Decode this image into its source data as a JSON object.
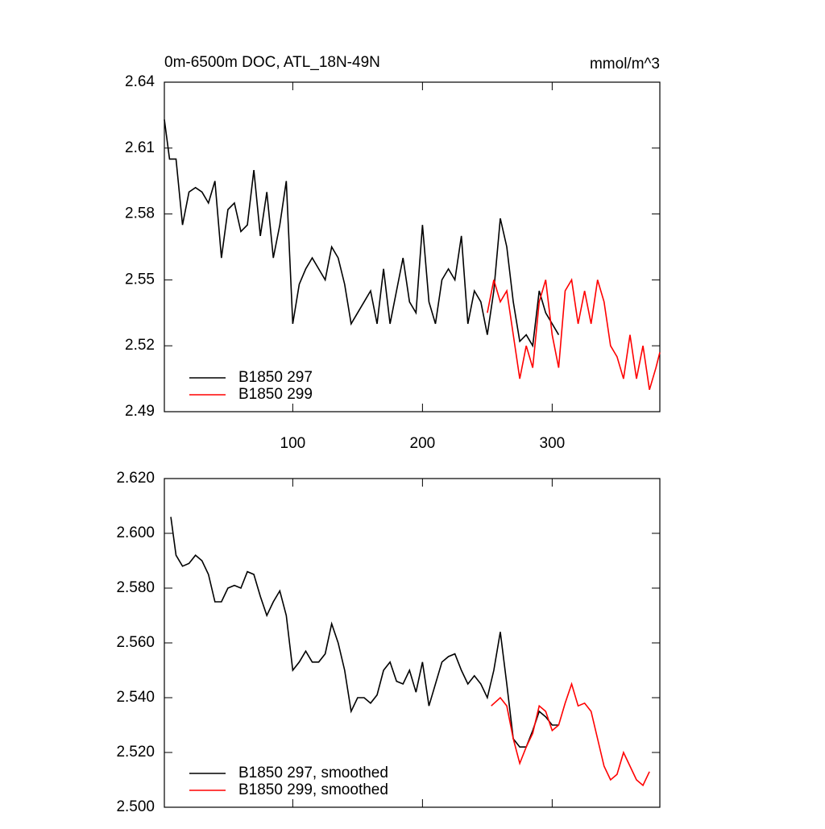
{
  "chart_data": [
    {
      "type": "line",
      "title": "0m-6500m DOC, ATL_18N-49N",
      "units": "mmol/m^3",
      "xlim": [
        1,
        383
      ],
      "xticks": [
        100,
        200,
        300
      ],
      "ylim": [
        2.49,
        2.64
      ],
      "yticks": [
        2.49,
        2.52,
        2.55,
        2.58,
        2.61,
        2.64
      ],
      "legend": "lower left",
      "series": [
        {
          "name": "B1850 297",
          "color": "#000000",
          "x": [
            1,
            5,
            10,
            15,
            20,
            25,
            30,
            35,
            40,
            45,
            50,
            55,
            60,
            65,
            70,
            75,
            80,
            85,
            90,
            95,
            100,
            105,
            110,
            115,
            120,
            125,
            130,
            135,
            140,
            145,
            150,
            155,
            160,
            165,
            170,
            175,
            180,
            185,
            190,
            195,
            200,
            205,
            210,
            215,
            220,
            225,
            230,
            235,
            240,
            245,
            250,
            255,
            260,
            265,
            270,
            275,
            280,
            285,
            290,
            295,
            300,
            305
          ],
          "values": [
            2.623,
            2.605,
            2.605,
            2.575,
            2.59,
            2.592,
            2.59,
            2.585,
            2.595,
            2.56,
            2.582,
            2.585,
            2.572,
            2.575,
            2.6,
            2.57,
            2.59,
            2.56,
            2.575,
            2.595,
            2.53,
            2.548,
            2.555,
            2.56,
            2.555,
            2.55,
            2.565,
            2.56,
            2.548,
            2.53,
            2.535,
            2.54,
            2.545,
            2.53,
            2.555,
            2.53,
            2.545,
            2.56,
            2.54,
            2.535,
            2.575,
            2.54,
            2.53,
            2.55,
            2.555,
            2.55,
            2.57,
            2.53,
            2.545,
            2.54,
            2.525,
            2.545,
            2.578,
            2.565,
            2.54,
            2.522,
            2.525,
            2.52,
            2.545,
            2.535,
            2.53,
            2.525
          ]
        },
        {
          "name": "B1850 299",
          "color": "#ff0000",
          "x": [
            250,
            255,
            260,
            265,
            270,
            275,
            280,
            285,
            290,
            295,
            300,
            305,
            310,
            315,
            320,
            325,
            330,
            335,
            340,
            345,
            350,
            355,
            360,
            365,
            370,
            375,
            380,
            383
          ],
          "values": [
            2.535,
            2.55,
            2.54,
            2.545,
            2.525,
            2.505,
            2.52,
            2.51,
            2.54,
            2.55,
            2.525,
            2.51,
            2.545,
            2.55,
            2.53,
            2.545,
            2.53,
            2.55,
            2.54,
            2.52,
            2.515,
            2.505,
            2.525,
            2.505,
            2.52,
            2.5,
            2.51,
            2.517
          ]
        }
      ]
    },
    {
      "type": "line",
      "xlim": [
        1,
        383
      ],
      "xticks": [
        100,
        200,
        300
      ],
      "ylim": [
        2.5,
        2.62
      ],
      "yticks": [
        {
          "value": 2.5,
          "label": "2.500"
        },
        {
          "value": 2.52,
          "label": "2.520"
        },
        {
          "value": 2.54,
          "label": "2.540"
        },
        {
          "value": 2.56,
          "label": "2.560"
        },
        {
          "value": 2.58,
          "label": "2.580"
        },
        {
          "value": 2.6,
          "label": "2.600"
        },
        {
          "value": 2.62,
          "label": "2.620"
        }
      ],
      "legend": "lower left",
      "series": [
        {
          "name": "B1850 297, smoothed",
          "color": "#000000",
          "x": [
            6,
            10,
            15,
            20,
            25,
            30,
            35,
            40,
            45,
            50,
            55,
            60,
            65,
            70,
            75,
            80,
            85,
            90,
            95,
            100,
            105,
            110,
            115,
            120,
            125,
            130,
            135,
            140,
            145,
            150,
            155,
            160,
            165,
            170,
            175,
            180,
            185,
            190,
            195,
            200,
            205,
            210,
            215,
            220,
            225,
            230,
            235,
            240,
            245,
            250,
            255,
            260,
            265,
            270,
            275,
            280,
            285,
            290,
            295,
            300,
            305
          ],
          "values": [
            2.606,
            2.592,
            2.588,
            2.589,
            2.592,
            2.59,
            2.585,
            2.575,
            2.575,
            2.58,
            2.581,
            2.58,
            2.586,
            2.585,
            2.577,
            2.57,
            2.575,
            2.579,
            2.57,
            2.55,
            2.553,
            2.557,
            2.553,
            2.553,
            2.556,
            2.567,
            2.56,
            2.55,
            2.535,
            2.54,
            2.54,
            2.538,
            2.541,
            2.55,
            2.553,
            2.546,
            2.545,
            2.55,
            2.542,
            2.553,
            2.537,
            2.545,
            2.553,
            2.555,
            2.556,
            2.55,
            2.545,
            2.548,
            2.545,
            2.54,
            2.55,
            2.564,
            2.545,
            2.525,
            2.522,
            2.522,
            2.528,
            2.535,
            2.533,
            2.53,
            2.53
          ]
        },
        {
          "name": "B1850 299, smoothed",
          "color": "#ff0000",
          "x": [
            253,
            260,
            265,
            270,
            275,
            280,
            285,
            290,
            295,
            300,
            305,
            310,
            315,
            320,
            325,
            330,
            335,
            340,
            345,
            350,
            355,
            360,
            365,
            370,
            375
          ],
          "values": [
            2.537,
            2.54,
            2.537,
            2.525,
            2.516,
            2.522,
            2.527,
            2.537,
            2.535,
            2.528,
            2.53,
            2.538,
            2.545,
            2.537,
            2.538,
            2.535,
            2.525,
            2.515,
            2.51,
            2.512,
            2.52,
            2.515,
            2.51,
            2.508,
            2.513
          ]
        }
      ]
    }
  ]
}
